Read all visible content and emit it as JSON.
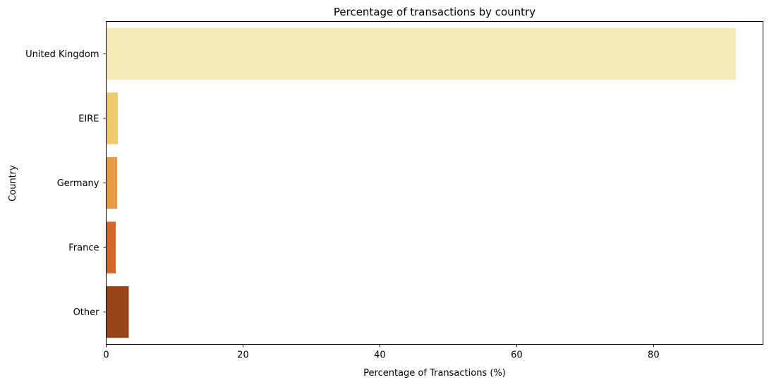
{
  "chart_data": {
    "type": "bar",
    "orientation": "horizontal",
    "title": "Percentage of transactions by country",
    "xlabel": "Percentage of Transactions (%)",
    "ylabel": "Country",
    "categories": [
      "United Kingdom",
      "EIRE",
      "Germany",
      "France",
      "Other"
    ],
    "values": [
      92.0,
      1.7,
      1.6,
      1.4,
      3.3
    ],
    "colors": [
      "#f6eab8",
      "#f0c971",
      "#e99a44",
      "#d2692a",
      "#954517"
    ],
    "xlim": [
      0,
      96
    ],
    "xticks": [
      0,
      20,
      40,
      60,
      80
    ],
    "grid": false
  }
}
